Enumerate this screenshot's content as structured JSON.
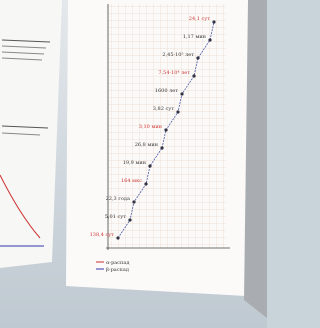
{
  "chain": {
    "half_lives": [
      "138,4 сут",
      "5,01 сут",
      "22,3 года",
      "164 мкс",
      "19,9 мин",
      "26,8 мин",
      "3,10 мин",
      "3,82 сут",
      "1600 лет",
      "7,54·10⁴ лет",
      "2,45·10⁵ лет",
      "1,17 мин",
      "24,1 сут"
    ],
    "legend": [
      "α-распад",
      "β-распад"
    ]
  }
}
